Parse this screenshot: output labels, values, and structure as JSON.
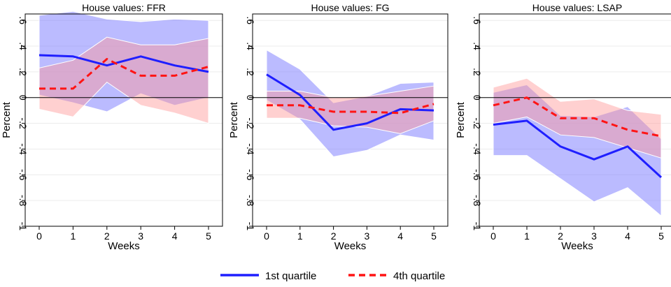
{
  "legend": {
    "items": [
      {
        "label": "1st quartile",
        "color": "#1f1fff",
        "dash": "solid"
      },
      {
        "label": "4th quartile",
        "color": "#ff1414",
        "dash": "dashed"
      }
    ]
  },
  "chart_data": [
    {
      "type": "line",
      "title": "House values: FFR",
      "xlabel": "Weeks",
      "ylabel": "Percent",
      "x": [
        0,
        1,
        2,
        3,
        4,
        5
      ],
      "xticks": [
        "0",
        "1",
        "2",
        "3",
        "4",
        "5"
      ],
      "ylim": [
        -1,
        0.65
      ],
      "yticks": [
        -1,
        -0.8,
        -0.6,
        -0.4,
        -0.2,
        0,
        0.2,
        0.4,
        0.6
      ],
      "ytick_labels": [
        "-1",
        "-.8",
        "-.6",
        "-.4",
        "-.2",
        "0",
        ".2",
        ".4",
        ".6"
      ],
      "series": [
        {
          "name": "1st quartile",
          "values": [
            0.33,
            0.32,
            0.25,
            0.32,
            0.25,
            0.2
          ],
          "lower": [
            0.02,
            -0.04,
            -0.11,
            0.03,
            -0.06,
            0.0
          ],
          "upper": [
            0.64,
            0.67,
            0.61,
            0.59,
            0.61,
            0.6
          ]
        },
        {
          "name": "4th quartile",
          "values": [
            0.07,
            0.07,
            0.3,
            0.17,
            0.17,
            0.24
          ],
          "lower": [
            -0.09,
            -0.15,
            0.12,
            -0.06,
            -0.12,
            -0.2
          ],
          "upper": [
            0.23,
            0.29,
            0.47,
            0.41,
            0.41,
            0.46
          ]
        }
      ]
    },
    {
      "type": "line",
      "title": "House values: FG",
      "xlabel": "Weeks",
      "ylabel": "Percent",
      "x": [
        0,
        1,
        2,
        3,
        4,
        5
      ],
      "xticks": [
        "0",
        "1",
        "2",
        "3",
        "4",
        "5"
      ],
      "ylim": [
        -1,
        0.65
      ],
      "yticks": [
        -1,
        -0.8,
        -0.6,
        -0.4,
        -0.2,
        0,
        0.2,
        0.4,
        0.6
      ],
      "ytick_labels": [
        "-1",
        "-.8",
        "-.6",
        "-.4",
        "-.2",
        "0",
        ".2",
        ".4",
        ".6"
      ],
      "series": [
        {
          "name": "1st quartile",
          "values": [
            0.18,
            0.02,
            -0.25,
            -0.2,
            -0.09,
            -0.1
          ],
          "lower": [
            -0.02,
            -0.17,
            -0.46,
            -0.41,
            -0.29,
            -0.33
          ],
          "upper": [
            0.37,
            0.22,
            -0.04,
            0.01,
            0.11,
            0.12
          ]
        },
        {
          "name": "4th quartile",
          "values": [
            -0.06,
            -0.06,
            -0.11,
            -0.11,
            -0.12,
            -0.05
          ],
          "lower": [
            -0.16,
            -0.16,
            -0.22,
            -0.23,
            -0.28,
            -0.18
          ],
          "upper": [
            0.05,
            0.05,
            0.0,
            0.01,
            0.05,
            0.09
          ]
        }
      ]
    },
    {
      "type": "line",
      "title": "House values: LSAP",
      "xlabel": "Weeks",
      "ylabel": "Percent",
      "x": [
        0,
        1,
        2,
        3,
        4,
        5
      ],
      "xticks": [
        "0",
        "1",
        "2",
        "3",
        "4",
        "5"
      ],
      "ylim": [
        -1,
        0.65
      ],
      "yticks": [
        -1,
        -0.8,
        -0.6,
        -0.4,
        -0.2,
        0,
        0.2,
        0.4,
        0.6
      ],
      "ytick_labels": [
        "-1",
        "-.8",
        "-.6",
        "-.4",
        "-.2",
        "0",
        ".2",
        ".4",
        ".6"
      ],
      "series": [
        {
          "name": "1st quartile",
          "values": [
            -0.21,
            -0.18,
            -0.38,
            -0.48,
            -0.38,
            -0.62
          ],
          "lower": [
            -0.45,
            -0.45,
            -0.63,
            -0.81,
            -0.7,
            -0.92
          ],
          "upper": [
            0.04,
            0.1,
            -0.14,
            -0.15,
            -0.07,
            -0.32
          ]
        },
        {
          "name": "4th quartile",
          "values": [
            -0.06,
            0.0,
            -0.16,
            -0.16,
            -0.25,
            -0.3
          ],
          "lower": [
            -0.2,
            -0.15,
            -0.29,
            -0.31,
            -0.39,
            -0.47
          ],
          "upper": [
            0.08,
            0.15,
            -0.03,
            -0.01,
            -0.1,
            -0.13
          ]
        }
      ]
    }
  ]
}
